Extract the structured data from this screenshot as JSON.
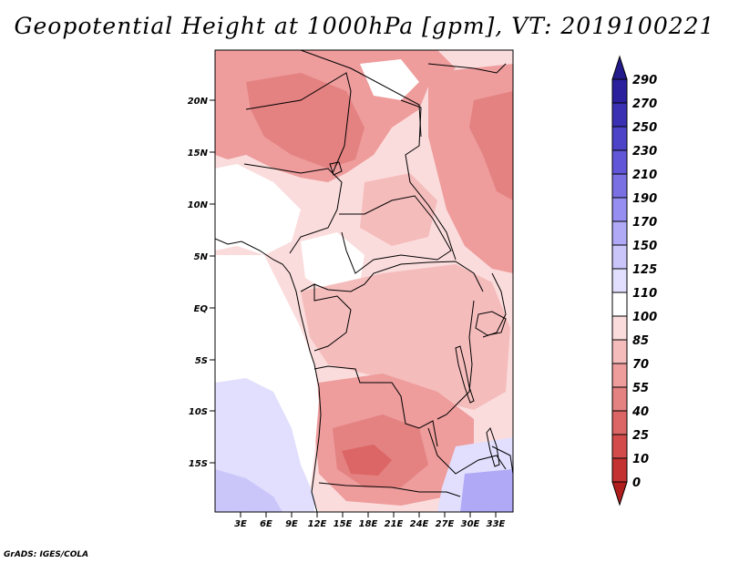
{
  "title": "Geopotential Height at 1000hPa [gpm], VT: 2019100221",
  "footer": "GrADS: IGES/COLA",
  "map": {
    "lat_labels": [
      "20N",
      "15N",
      "10N",
      "5N",
      "EQ",
      "5S",
      "10S",
      "15S"
    ],
    "lon_labels": [
      "3E",
      "6E",
      "9E",
      "12E",
      "15E",
      "18E",
      "21E",
      "24E",
      "27E",
      "30E",
      "33E"
    ]
  },
  "colorbar": {
    "levels": [
      "290",
      "270",
      "250",
      "230",
      "210",
      "190",
      "170",
      "150",
      "125",
      "110",
      "100",
      "85",
      "70",
      "55",
      "40",
      "25",
      "10",
      "0"
    ],
    "colors": {
      "top_arrow": "#231a8c",
      "blue_dark": "#2b1f9e",
      "blue_2": "#3a30b4",
      "blue_3": "#4c43c8",
      "blue_4": "#6256d8",
      "blue_5": "#7a70e4",
      "blue_6": "#968ef0",
      "blue_7": "#b0aaf6",
      "blue_8": "#cac6fa",
      "blue_pale": "#e1dffd",
      "white": "#ffffff",
      "pink_pale": "#fbdcdc",
      "pink": "#f5bcbc",
      "pink_mid": "#ee9c9c",
      "red_light": "#e48181",
      "red_mid": "#dc6565",
      "red": "#d34b4b",
      "red_dark": "#c43232",
      "bottom_arrow": "#b01e1e"
    }
  }
}
